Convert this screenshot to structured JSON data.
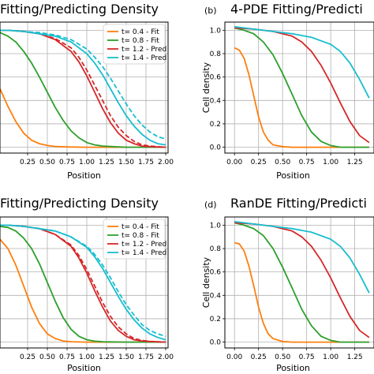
{
  "chart_data": [
    {
      "type": "line",
      "panel_label": "",
      "title": "Fitting/Predicting Density",
      "xlabel": "Position",
      "ylabel": "",
      "xlim": [
        -0.1,
        2.03
      ],
      "ylim": [
        -0.05,
        1.07
      ],
      "xticks": [
        "0.25",
        "0.50",
        "0.75",
        "1.00",
        "1.25",
        "1.50",
        "1.75",
        "2.00"
      ],
      "yticks": [],
      "grid": true,
      "legend": "top-right",
      "series": [
        {
          "name": "t= 0.4 - Fit",
          "color": "#ff7f0e",
          "x": [
            -0.1,
            0.0,
            0.1,
            0.2,
            0.3,
            0.4,
            0.5,
            0.6,
            0.8,
            1.0,
            1.5,
            2.0
          ],
          "y": [
            0.5,
            0.35,
            0.22,
            0.12,
            0.06,
            0.03,
            0.015,
            0.007,
            0.002,
            0.0,
            0.0,
            0.0
          ],
          "model_y": [
            0.5,
            0.35,
            0.22,
            0.12,
            0.06,
            0.03,
            0.015,
            0.007,
            0.002,
            0.0,
            0.0,
            0.0
          ]
        },
        {
          "name": "t= 0.8 - Fit",
          "color": "#2ca02c",
          "x": [
            -0.1,
            0.0,
            0.1,
            0.2,
            0.3,
            0.4,
            0.5,
            0.6,
            0.7,
            0.8,
            0.9,
            1.0,
            1.1,
            1.2,
            1.5,
            2.0
          ],
          "y": [
            0.98,
            0.95,
            0.9,
            0.82,
            0.72,
            0.6,
            0.47,
            0.34,
            0.23,
            0.14,
            0.08,
            0.04,
            0.02,
            0.01,
            0.0,
            0.0
          ],
          "model_y": [
            0.98,
            0.95,
            0.9,
            0.82,
            0.72,
            0.6,
            0.47,
            0.34,
            0.23,
            0.14,
            0.08,
            0.04,
            0.02,
            0.01,
            0.0,
            0.0
          ]
        },
        {
          "name": "t= 1.2 - Pred",
          "color": "#d62728",
          "x": [
            -0.1,
            0.0,
            0.2,
            0.4,
            0.6,
            0.8,
            0.9,
            1.0,
            1.1,
            1.2,
            1.3,
            1.4,
            1.5,
            1.6,
            1.7,
            1.8,
            2.0
          ],
          "y": [
            1.0,
            1.0,
            0.99,
            0.97,
            0.92,
            0.82,
            0.73,
            0.61,
            0.47,
            0.33,
            0.21,
            0.12,
            0.06,
            0.03,
            0.01,
            0.005,
            0.0
          ],
          "model_y": [
            1.0,
            1.0,
            0.99,
            0.97,
            0.93,
            0.85,
            0.77,
            0.66,
            0.53,
            0.4,
            0.27,
            0.17,
            0.1,
            0.05,
            0.02,
            0.01,
            0.0
          ]
        },
        {
          "name": "t= 1.4 - Pred",
          "color": "#17becf",
          "x": [
            -0.1,
            0.0,
            0.2,
            0.4,
            0.6,
            0.8,
            1.0,
            1.1,
            1.2,
            1.3,
            1.4,
            1.5,
            1.6,
            1.7,
            1.8,
            1.9,
            2.0
          ],
          "y": [
            1.0,
            1.0,
            0.99,
            0.97,
            0.95,
            0.9,
            0.8,
            0.72,
            0.62,
            0.5,
            0.38,
            0.27,
            0.18,
            0.11,
            0.06,
            0.03,
            0.02
          ],
          "model_y": [
            1.0,
            1.0,
            0.99,
            0.98,
            0.96,
            0.92,
            0.84,
            0.77,
            0.69,
            0.59,
            0.48,
            0.37,
            0.27,
            0.19,
            0.13,
            0.09,
            0.07
          ]
        }
      ]
    },
    {
      "type": "line",
      "panel_label": "(b)",
      "title": "4-PDE Fitting/Predicti",
      "xlabel": "Position",
      "ylabel": "Cell density",
      "xlim": [
        -0.1,
        1.45
      ],
      "ylim": [
        -0.05,
        1.07
      ],
      "xticks": [
        "0.00",
        "0.25",
        "0.50",
        "0.75",
        "1.00",
        "1.25"
      ],
      "yticks": [
        "0.0",
        "0.2",
        "0.4",
        "0.6",
        "0.8",
        "1.0"
      ],
      "grid": true,
      "legend": "",
      "series": [
        {
          "name": "",
          "color": "#ff7f0e",
          "x": [
            0.0,
            0.05,
            0.1,
            0.15,
            0.2,
            0.25,
            0.3,
            0.35,
            0.4,
            0.5,
            0.6,
            0.8,
            1.4
          ],
          "y": [
            0.85,
            0.83,
            0.76,
            0.62,
            0.44,
            0.26,
            0.13,
            0.06,
            0.02,
            0.005,
            0.0,
            0.0,
            0.0
          ],
          "model_y": [
            0.85,
            0.83,
            0.76,
            0.62,
            0.44,
            0.26,
            0.13,
            0.06,
            0.02,
            0.005,
            0.0,
            0.0,
            0.0
          ]
        },
        {
          "name": "",
          "color": "#2ca02c",
          "x": [
            0.0,
            0.1,
            0.2,
            0.3,
            0.4,
            0.5,
            0.6,
            0.7,
            0.8,
            0.9,
            1.0,
            1.1,
            1.2,
            1.4
          ],
          "y": [
            1.02,
            1.0,
            0.97,
            0.9,
            0.79,
            0.63,
            0.45,
            0.27,
            0.13,
            0.05,
            0.015,
            0.0,
            0.0,
            0.0
          ],
          "model_y": [
            1.02,
            1.0,
            0.97,
            0.9,
            0.79,
            0.63,
            0.45,
            0.27,
            0.13,
            0.05,
            0.015,
            0.0,
            0.0,
            0.0
          ]
        },
        {
          "name": "",
          "color": "#d62728",
          "x": [
            0.0,
            0.2,
            0.4,
            0.6,
            0.7,
            0.8,
            0.9,
            1.0,
            1.1,
            1.2,
            1.3,
            1.4
          ],
          "y": [
            1.02,
            1.01,
            0.99,
            0.95,
            0.9,
            0.82,
            0.7,
            0.55,
            0.38,
            0.22,
            0.1,
            0.04
          ],
          "model_y": [
            1.02,
            1.01,
            0.99,
            0.95,
            0.9,
            0.82,
            0.7,
            0.55,
            0.38,
            0.22,
            0.1,
            0.04
          ]
        },
        {
          "name": "",
          "color": "#17becf",
          "x": [
            0.0,
            0.2,
            0.4,
            0.6,
            0.8,
            1.0,
            1.1,
            1.2,
            1.3,
            1.4
          ],
          "y": [
            1.03,
            1.01,
            0.99,
            0.97,
            0.94,
            0.88,
            0.82,
            0.72,
            0.58,
            0.42
          ],
          "model_y": [
            1.03,
            1.01,
            0.99,
            0.97,
            0.94,
            0.88,
            0.82,
            0.72,
            0.58,
            0.42
          ]
        }
      ]
    },
    {
      "type": "line",
      "panel_label": "",
      "title": "Fitting/Predicting Density",
      "xlabel": "Position",
      "ylabel": "",
      "xlim": [
        -0.1,
        2.03
      ],
      "ylim": [
        -0.05,
        1.07
      ],
      "xticks": [
        "0.25",
        "0.50",
        "0.75",
        "1.00",
        "1.25",
        "1.50",
        "1.75",
        "2.00"
      ],
      "yticks": [],
      "grid": true,
      "legend": "top-right",
      "series": [
        {
          "name": "t= 0.4 - Fit",
          "color": "#ff7f0e",
          "x": [
            -0.1,
            0.0,
            0.1,
            0.2,
            0.3,
            0.4,
            0.5,
            0.6,
            0.7,
            0.8,
            1.0,
            1.5,
            2.0
          ],
          "y": [
            0.88,
            0.8,
            0.66,
            0.48,
            0.3,
            0.16,
            0.07,
            0.03,
            0.01,
            0.003,
            0.0,
            0.0,
            0.0
          ],
          "model_y": [
            0.88,
            0.8,
            0.66,
            0.48,
            0.3,
            0.16,
            0.07,
            0.03,
            0.01,
            0.003,
            0.0,
            0.0,
            0.0
          ]
        },
        {
          "name": "t= 0.8 - Fit",
          "color": "#2ca02c",
          "x": [
            -0.1,
            0.0,
            0.1,
            0.2,
            0.3,
            0.4,
            0.5,
            0.6,
            0.7,
            0.8,
            0.9,
            1.0,
            1.1,
            1.2,
            1.5,
            2.0
          ],
          "y": [
            0.99,
            0.98,
            0.95,
            0.89,
            0.8,
            0.67,
            0.51,
            0.35,
            0.21,
            0.11,
            0.05,
            0.02,
            0.008,
            0.003,
            0.0,
            0.0
          ],
          "model_y": [
            0.99,
            0.98,
            0.95,
            0.89,
            0.8,
            0.67,
            0.51,
            0.35,
            0.21,
            0.11,
            0.05,
            0.02,
            0.008,
            0.003,
            0.0,
            0.0
          ]
        },
        {
          "name": "t= 1.2 - Pred",
          "color": "#d62728",
          "x": [
            -0.1,
            0.0,
            0.2,
            0.4,
            0.6,
            0.8,
            0.9,
            1.0,
            1.1,
            1.2,
            1.3,
            1.4,
            1.5,
            1.6,
            1.7,
            1.8,
            2.0
          ],
          "y": [
            1.0,
            1.0,
            0.99,
            0.97,
            0.92,
            0.82,
            0.72,
            0.59,
            0.44,
            0.3,
            0.18,
            0.1,
            0.05,
            0.02,
            0.01,
            0.005,
            0.0
          ],
          "model_y": [
            1.0,
            1.0,
            0.99,
            0.97,
            0.92,
            0.83,
            0.74,
            0.62,
            0.48,
            0.34,
            0.22,
            0.13,
            0.07,
            0.03,
            0.015,
            0.007,
            0.0
          ]
        },
        {
          "name": "t= 1.4 - Pred",
          "color": "#17becf",
          "x": [
            -0.1,
            0.0,
            0.2,
            0.4,
            0.6,
            0.8,
            1.0,
            1.1,
            1.2,
            1.3,
            1.4,
            1.5,
            1.6,
            1.7,
            1.8,
            1.9,
            2.0
          ],
          "y": [
            1.0,
            1.0,
            0.99,
            0.97,
            0.95,
            0.9,
            0.81,
            0.73,
            0.63,
            0.51,
            0.39,
            0.28,
            0.19,
            0.12,
            0.07,
            0.04,
            0.02
          ],
          "model_y": [
            1.0,
            1.0,
            0.99,
            0.97,
            0.95,
            0.9,
            0.82,
            0.75,
            0.66,
            0.55,
            0.43,
            0.32,
            0.23,
            0.15,
            0.1,
            0.07,
            0.05
          ]
        }
      ]
    },
    {
      "type": "line",
      "panel_label": "(d)",
      "title": "RanDE Fitting/Predicti",
      "xlabel": "Position",
      "ylabel": "Cell density",
      "xlim": [
        -0.1,
        1.45
      ],
      "ylim": [
        -0.05,
        1.07
      ],
      "xticks": [
        "0.00",
        "0.25",
        "0.50",
        "0.75",
        "1.00",
        "1.25"
      ],
      "yticks": [
        "0.0",
        "0.2",
        "0.4",
        "0.6",
        "0.8",
        "1.0"
      ],
      "grid": true,
      "legend": "",
      "series": [
        {
          "name": "",
          "color": "#ff7f0e",
          "x": [
            0.0,
            0.05,
            0.1,
            0.15,
            0.2,
            0.25,
            0.3,
            0.35,
            0.4,
            0.5,
            0.6,
            0.8,
            1.4
          ],
          "y": [
            0.85,
            0.84,
            0.78,
            0.65,
            0.48,
            0.3,
            0.16,
            0.07,
            0.03,
            0.005,
            0.0,
            0.0,
            0.0
          ],
          "model_y": [
            0.85,
            0.84,
            0.78,
            0.65,
            0.48,
            0.3,
            0.16,
            0.07,
            0.03,
            0.005,
            0.0,
            0.0,
            0.0
          ]
        },
        {
          "name": "",
          "color": "#2ca02c",
          "x": [
            0.0,
            0.1,
            0.2,
            0.3,
            0.4,
            0.5,
            0.6,
            0.7,
            0.8,
            0.9,
            1.0,
            1.1,
            1.2,
            1.4
          ],
          "y": [
            1.02,
            1.0,
            0.97,
            0.91,
            0.8,
            0.64,
            0.46,
            0.28,
            0.14,
            0.05,
            0.015,
            0.0,
            0.0,
            0.0
          ],
          "model_y": [
            1.02,
            1.0,
            0.97,
            0.91,
            0.8,
            0.64,
            0.46,
            0.28,
            0.14,
            0.05,
            0.015,
            0.0,
            0.0,
            0.0
          ]
        },
        {
          "name": "",
          "color": "#d62728",
          "x": [
            0.0,
            0.2,
            0.4,
            0.6,
            0.7,
            0.8,
            0.9,
            1.0,
            1.1,
            1.2,
            1.3,
            1.4
          ],
          "y": [
            1.02,
            1.01,
            0.99,
            0.95,
            0.9,
            0.82,
            0.7,
            0.55,
            0.38,
            0.22,
            0.1,
            0.04
          ],
          "model_y": [
            1.02,
            1.01,
            0.99,
            0.95,
            0.9,
            0.82,
            0.7,
            0.55,
            0.38,
            0.22,
            0.1,
            0.04
          ]
        },
        {
          "name": "",
          "color": "#17becf",
          "x": [
            0.0,
            0.2,
            0.4,
            0.6,
            0.8,
            1.0,
            1.1,
            1.2,
            1.3,
            1.4
          ],
          "y": [
            1.03,
            1.01,
            0.99,
            0.97,
            0.94,
            0.88,
            0.82,
            0.72,
            0.58,
            0.42
          ],
          "model_y": [
            1.03,
            1.01,
            0.99,
            0.97,
            0.94,
            0.88,
            0.82,
            0.72,
            0.58,
            0.42
          ]
        }
      ]
    }
  ]
}
